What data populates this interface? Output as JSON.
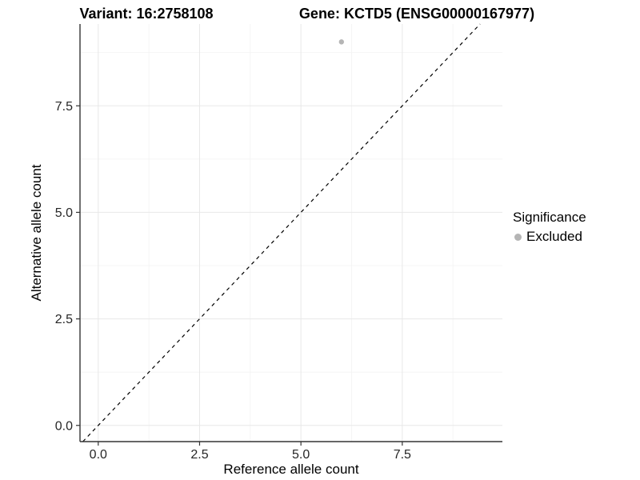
{
  "chart_data": {
    "type": "scatter",
    "titles": {
      "left": "Variant: 16:2758108",
      "right": "Gene: KCTD5 (ENSG00000167977)"
    },
    "xlabel": "Reference allele count",
    "ylabel": "Alternative allele count",
    "x_ticks": [
      0.0,
      2.5,
      5.0,
      7.5
    ],
    "y_ticks": [
      0.0,
      2.5,
      5.0,
      7.5
    ],
    "x_minor_ticks": [
      1.25,
      3.75,
      6.25,
      8.75
    ],
    "y_minor_ticks": [
      1.25,
      3.75,
      6.25,
      8.75
    ],
    "xlim": [
      -0.45,
      9.97
    ],
    "ylim": [
      -0.38,
      9.42
    ],
    "series": [
      {
        "name": "Excluded",
        "color": "#b5b5b5",
        "points": [
          {
            "x": 6,
            "y": 9
          }
        ]
      }
    ],
    "reference_line": {
      "slope": 1,
      "intercept": 0,
      "style": "dashed",
      "color": "#000000"
    },
    "legend": {
      "title": "Significance",
      "position": "right",
      "items": [
        {
          "label": "Excluded",
          "color": "#b5b5b5"
        }
      ]
    },
    "grid": {
      "shown": true,
      "major_color": "#e8e8e8",
      "minor_color": "#f3f3f3"
    },
    "axis_color": "#333333"
  }
}
